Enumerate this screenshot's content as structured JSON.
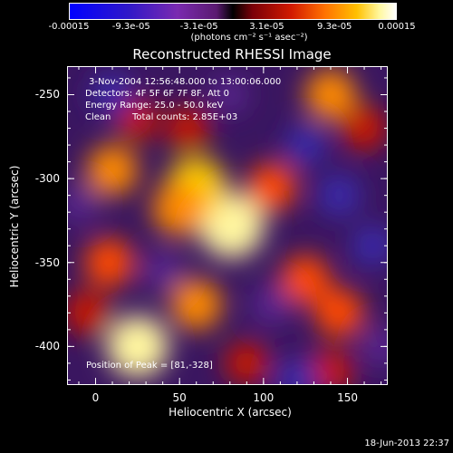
{
  "chart_data": {
    "type": "heatmap",
    "title": "Reconstructed RHESSI Image",
    "xlabel": "Heliocentric X (arcsec)",
    "ylabel": "Heliocentric Y (arcsec)",
    "xlim": [
      -17,
      174
    ],
    "ylim": [
      -423,
      -233
    ],
    "x_ticks": [
      "0",
      "50",
      "100",
      "150"
    ],
    "x_tick_values": [
      0,
      50,
      100,
      150
    ],
    "y_ticks": [
      "-250",
      "-300",
      "-350",
      "-400"
    ],
    "y_tick_values": [
      -250,
      -300,
      -350,
      -400
    ],
    "colorbar": {
      "ticks": [
        "-0.00015",
        "-9.3e-05",
        "-3.1e-05",
        "3.1e-05",
        "9.3e-05",
        "0.00015"
      ],
      "tick_values": [
        -0.00015,
        -9.3e-05,
        -3.1e-05,
        3.1e-05,
        9.3e-05,
        0.00015
      ],
      "units": "(photons cm⁻² s⁻¹ asec⁻²)",
      "colors": [
        "#0000ff",
        "#7a2ab0",
        "#000000",
        "#d21a00",
        "#ff7000",
        "#ffc000",
        "#ffffff"
      ]
    },
    "annotations": {
      "time": "3-Nov-2004 12:56:48.000 to 13:00:06.000",
      "detectors": "Detectors: 4F 5F 6F 7F 8F, Att 0",
      "energy": "Energy Range: 25.0 - 50.0 keV",
      "clean": "Clean",
      "counts": "Total counts: 2.85E+03",
      "peak": "Position of Peak = [81,-328]"
    },
    "sources": [
      {
        "x": 81,
        "y": -328,
        "intensity": 1.0
      },
      {
        "x": 60,
        "y": -305,
        "intensity": 0.85
      },
      {
        "x": 25,
        "y": -400,
        "intensity": 0.9
      },
      {
        "x": 50,
        "y": -318,
        "intensity": 0.7
      },
      {
        "x": 105,
        "y": -305,
        "intensity": 0.55
      },
      {
        "x": 8,
        "y": -350,
        "intensity": 0.55
      },
      {
        "x": -5,
        "y": -380,
        "intensity": 0.45
      },
      {
        "x": 10,
        "y": -295,
        "intensity": 0.6
      },
      {
        "x": 125,
        "y": -360,
        "intensity": 0.55
      },
      {
        "x": 145,
        "y": -380,
        "intensity": 0.55
      },
      {
        "x": 140,
        "y": -250,
        "intensity": 0.6
      },
      {
        "x": 160,
        "y": -270,
        "intensity": 0.45
      },
      {
        "x": 60,
        "y": -375,
        "intensity": 0.6
      },
      {
        "x": 55,
        "y": -270,
        "intensity": 0.4
      },
      {
        "x": 140,
        "y": -415,
        "intensity": 0.45
      },
      {
        "x": 25,
        "y": -265,
        "intensity": 0.35
      },
      {
        "x": 90,
        "y": -410,
        "intensity": 0.4
      },
      {
        "x": 10,
        "y": -250,
        "intensity": -0.5
      },
      {
        "x": 145,
        "y": -310,
        "intensity": -0.55
      },
      {
        "x": 125,
        "y": -280,
        "intensity": -0.5
      },
      {
        "x": 40,
        "y": -355,
        "intensity": -0.4
      },
      {
        "x": 105,
        "y": -375,
        "intensity": -0.45
      },
      {
        "x": 165,
        "y": -340,
        "intensity": -0.5
      },
      {
        "x": 120,
        "y": -420,
        "intensity": -0.55
      },
      {
        "x": -10,
        "y": -315,
        "intensity": -0.35
      },
      {
        "x": 170,
        "y": -400,
        "intensity": -0.4
      },
      {
        "x": 80,
        "y": -250,
        "intensity": -0.3
      }
    ]
  },
  "footer": {
    "date": "18-Jun-2013 22:37"
  }
}
